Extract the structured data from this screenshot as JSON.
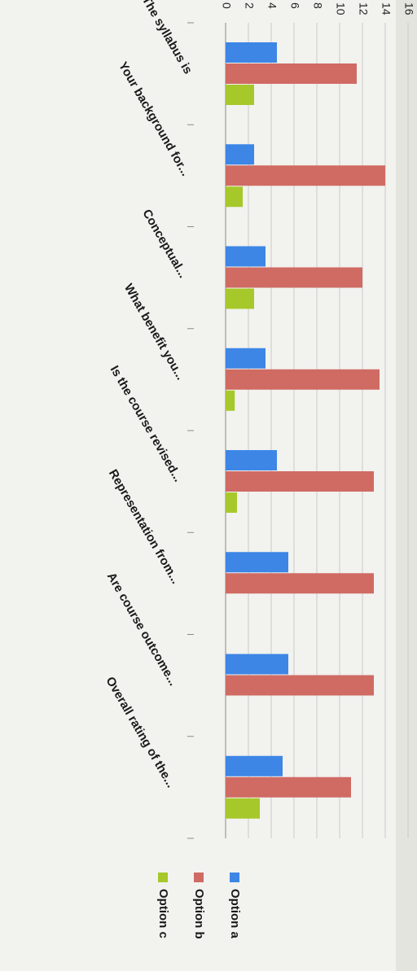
{
  "chart_data": {
    "type": "bar",
    "orientation": "rotated",
    "categories": [
      "The syllabus is",
      "Your background for...",
      "Conceptual...",
      "What benefit you...",
      "Is the course revised...",
      "Representation from...",
      "Are course outcome...",
      "Overall rating of the..."
    ],
    "series": [
      {
        "name": "Option a",
        "color": "#3d86e6",
        "values": [
          4.5,
          2.5,
          3.5,
          3.5,
          4.5,
          5.5,
          5.5,
          5
        ]
      },
      {
        "name": "Option b",
        "color": "#cf6b63",
        "values": [
          11.5,
          14,
          12,
          13.5,
          13,
          13,
          13,
          11
        ]
      },
      {
        "name": "Option c",
        "color": "#a7c82a",
        "values": [
          2.5,
          1.5,
          2.5,
          0.8,
          1,
          0,
          0,
          3
        ]
      }
    ],
    "yticks": [
      "0",
      "2",
      "4",
      "6",
      "8",
      "10",
      "12",
      "14",
      "16"
    ],
    "ylim": [
      0,
      16
    ],
    "grid": true,
    "legend": "bottom"
  }
}
